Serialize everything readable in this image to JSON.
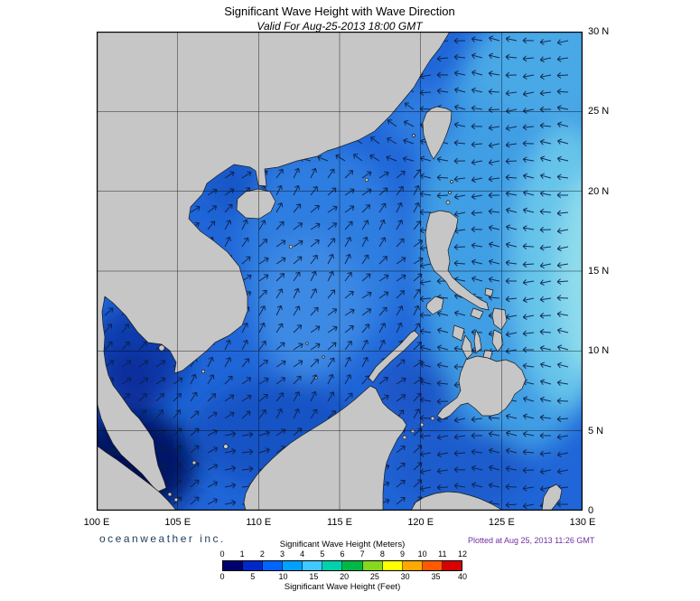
{
  "title": "Significant Wave Height with Wave Direction",
  "subtitle": "Valid For Aug-25-2013 18:00 GMT",
  "map": {
    "x_tick_labels": [
      "100 E",
      "105 E",
      "110 E",
      "115 E",
      "120 E",
      "125 E",
      "130 E"
    ],
    "y_tick_labels": [
      "30 N",
      "25 N",
      "20 N",
      "15 N",
      "10 N",
      "5 N",
      "0"
    ]
  },
  "footer": {
    "branding": "oceanweather inc.",
    "plotted_at": "Plotted at Aug 25, 2013 11:26 GMT"
  },
  "legend": {
    "meters_title": "Significant Wave Height (Meters)",
    "meters_ticks": [
      "0",
      "1",
      "2",
      "3",
      "4",
      "5",
      "6",
      "7",
      "8",
      "9",
      "10",
      "11",
      "12"
    ],
    "feet_ticks": [
      "0",
      "5",
      "10",
      "15",
      "20",
      "25",
      "30",
      "35",
      "40"
    ],
    "feet_title": "Significant Wave Height (Feet)",
    "segment_colors": [
      "#000070",
      "#0028c8",
      "#0064ff",
      "#00a0ff",
      "#40c8ff",
      "#00d2aa",
      "#00b846",
      "#86d81e",
      "#ffff00",
      "#ffa800",
      "#ff5a00",
      "#d80000"
    ]
  },
  "colors": {
    "land": "#c6c6c6",
    "ocean_base": "#2066d8",
    "arrow": "#0b1f46",
    "plotted_text": "#7030a0"
  }
}
